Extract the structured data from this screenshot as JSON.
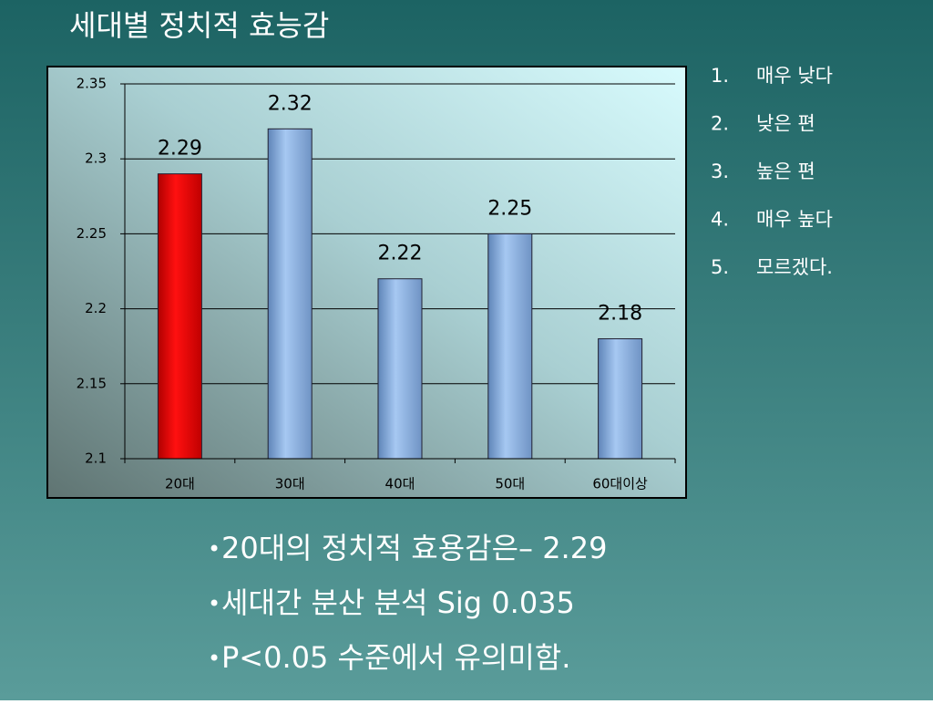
{
  "chart_data": {
    "type": "bar",
    "title": "세대별 정치적 효능감",
    "categories": [
      "20대",
      "30대",
      "40대",
      "50대",
      "60대이상"
    ],
    "values": [
      2.29,
      2.32,
      2.22,
      2.25,
      2.18
    ],
    "colors": [
      "#e00000",
      "#8fb8ec",
      "#8fb8ec",
      "#8fb8ec",
      "#8fb8ec"
    ],
    "ylim": [
      2.1,
      2.35
    ],
    "yticks": [
      2.1,
      2.15,
      2.2,
      2.25,
      2.3,
      2.35
    ],
    "grid": true
  },
  "legend_list": [
    {
      "num": "1.",
      "text": "매우 낮다"
    },
    {
      "num": "2.",
      "text": "낮은 편"
    },
    {
      "num": "3.",
      "text": "높은 편"
    },
    {
      "num": "4.",
      "text": "매우 높다"
    },
    {
      "num": "5.",
      "text": "모르겠다."
    }
  ],
  "bullets": [
    "20대의 정치적 효용감은– 2.29",
    "세대간 분산 분석 Sig 0.035",
    "P<0.05 수준에서 유의미함."
  ]
}
